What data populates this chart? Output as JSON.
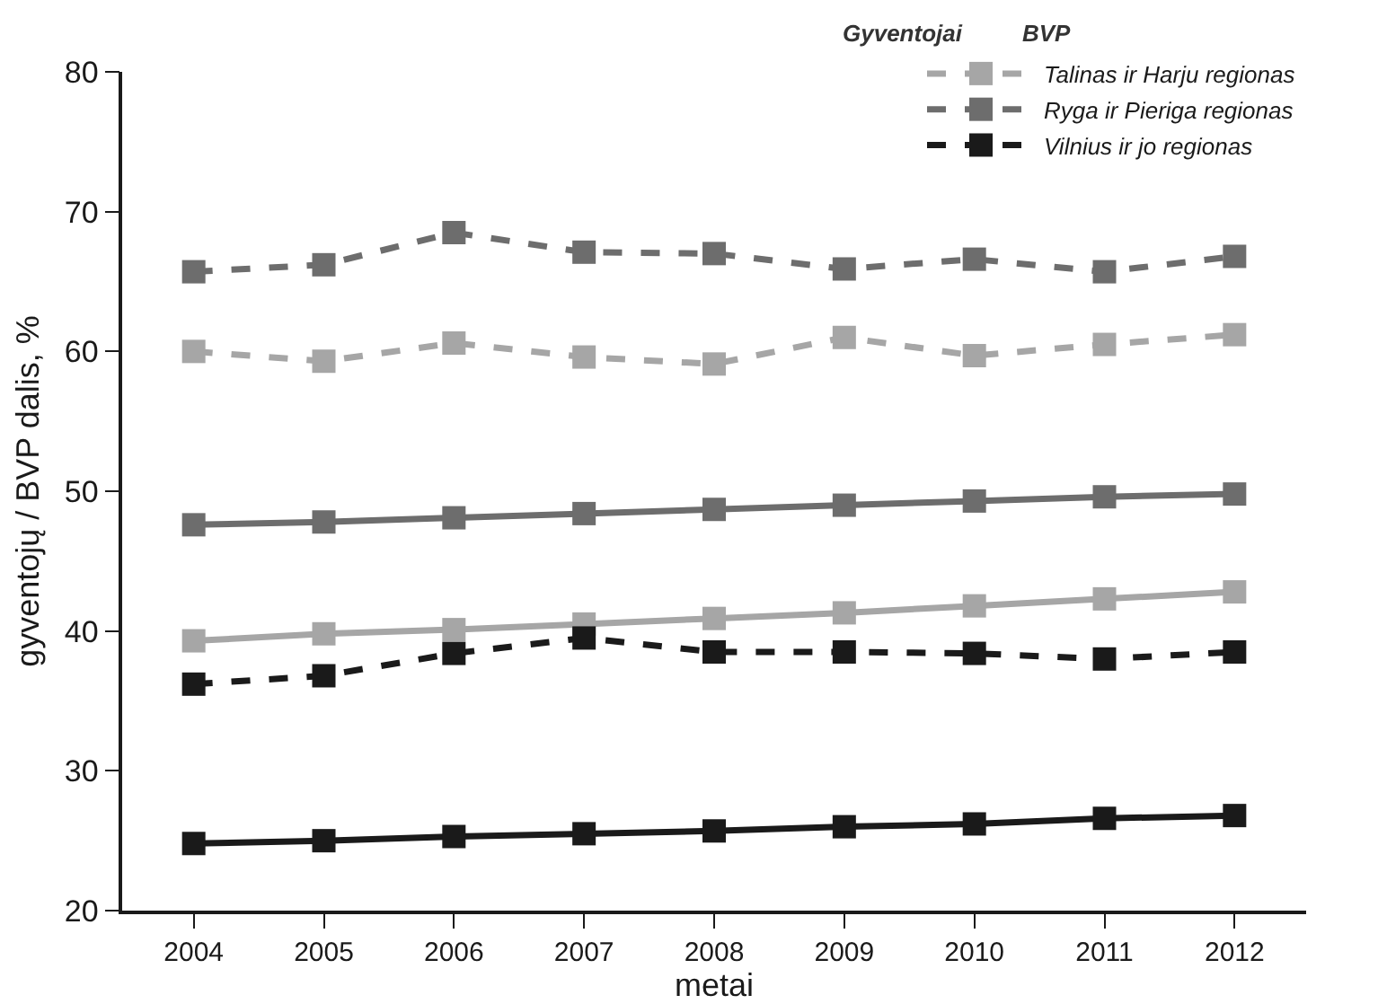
{
  "chart_data": {
    "type": "line",
    "xlabel": "metai",
    "ylabel": "gyventojų / BVP dalis, %",
    "categories": [
      "2004",
      "2005",
      "2006",
      "2007",
      "2008",
      "2009",
      "2010",
      "2011",
      "2012"
    ],
    "ylim": [
      20,
      80
    ],
    "yticks": [
      20,
      30,
      40,
      50,
      60,
      70,
      80
    ],
    "grid": false,
    "legend": "top right",
    "marker": "square",
    "annotations": [
      "Gyventojai",
      "BVP"
    ],
    "series": [
      {
        "color": "#a6a6a6",
        "line_style": "solid",
        "values": [
          39.3,
          39.8,
          40.1,
          40.5,
          40.9,
          41.3,
          41.8,
          42.3,
          42.8
        ]
      },
      {
        "name": "Talinas ir Harju regionas",
        "color": "#a6a6a6",
        "line_style": "dashed",
        "values": [
          60,
          59.3,
          60.6,
          59.6,
          59.1,
          61,
          59.7,
          60.5,
          61.2
        ]
      },
      {
        "color": "#6d6d6d",
        "line_style": "solid",
        "values": [
          47.6,
          47.8,
          48.1,
          48.4,
          48.7,
          49,
          49.3,
          49.6,
          49.8
        ]
      },
      {
        "name": "Ryga ir Pieriga regionas",
        "color": "#6d6d6d",
        "line_style": "dashed",
        "values": [
          65.7,
          66.2,
          68.5,
          67.1,
          67,
          65.9,
          66.6,
          65.7,
          66.8
        ]
      },
      {
        "color": "#1a1a1a",
        "line_style": "solid",
        "values": [
          24.8,
          25,
          25.3,
          25.5,
          25.7,
          26,
          26.2,
          26.6,
          26.8
        ]
      },
      {
        "name": "Vilnius ir jo regionas",
        "color": "#1a1a1a",
        "line_style": "dashed",
        "values": [
          36.2,
          36.8,
          38.4,
          39.5,
          38.5,
          38.5,
          38.4,
          38,
          38.5
        ]
      }
    ]
  }
}
